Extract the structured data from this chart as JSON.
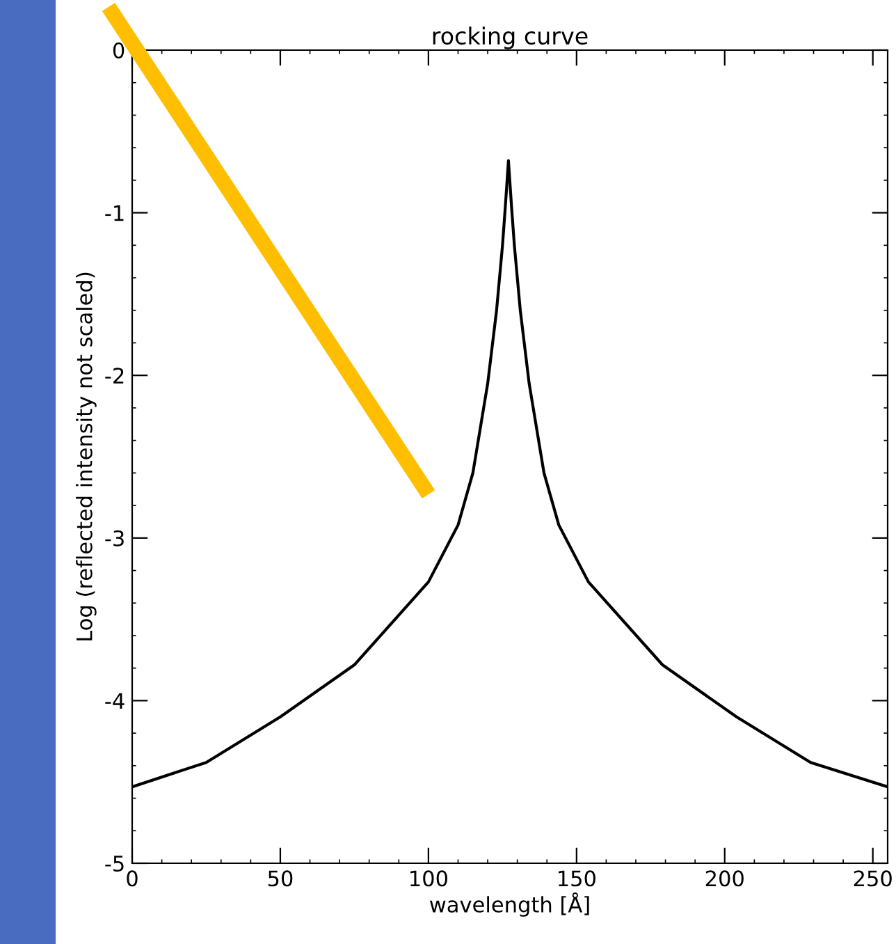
{
  "chart_data": {
    "type": "line",
    "title": "rocking curve",
    "xlabel": "wavelength [Å]",
    "ylabel": "Log (reflected intensity not scaled)",
    "x": [
      0,
      25,
      50,
      75,
      100,
      110,
      115,
      120,
      123,
      125,
      126,
      127,
      128,
      129,
      131,
      134,
      139,
      144,
      154,
      179,
      204,
      229,
      255
    ],
    "series": [
      {
        "color": "#000000",
        "values": [
          -4.53,
          -4.38,
          -4.1,
          -3.78,
          -3.27,
          -2.92,
          -2.6,
          -2.05,
          -1.6,
          -1.2,
          -0.95,
          -0.68,
          -0.95,
          -1.2,
          -1.6,
          -2.05,
          -2.6,
          -2.92,
          -3.27,
          -3.78,
          -4.1,
          -4.38,
          -4.53
        ]
      }
    ],
    "xlim": [
      0,
      255
    ],
    "ylim": [
      -5,
      0
    ],
    "xticks": [
      0,
      50,
      100,
      150,
      200,
      250
    ],
    "yticks": [
      -5,
      -4,
      -3,
      -2,
      -1,
      0
    ],
    "grid": false,
    "marker": "none",
    "line_style": "solid"
  }
}
